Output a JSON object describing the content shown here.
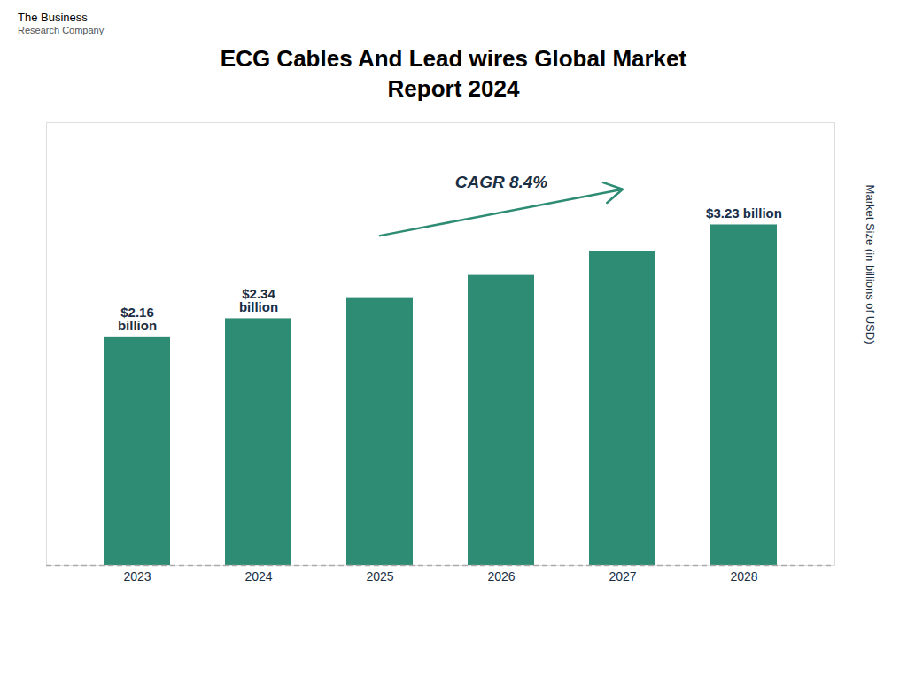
{
  "chart_data": {
    "type": "bar",
    "title": "ECG Cables And Lead wires Global Market\nReport 2024",
    "categories": [
      "2023",
      "2024",
      "2025",
      "2026",
      "2027",
      "2028"
    ],
    "values": [
      2.16,
      2.34,
      2.54,
      2.75,
      2.98,
      3.23
    ],
    "value_labels": [
      "$2.16\nbillion",
      "$2.34\nbillion",
      null,
      null,
      null,
      "$3.23 billion"
    ],
    "color": "#2e8b74",
    "ylabel": "Market Size (in billions of USD)",
    "ylim": [
      0,
      4.2
    ],
    "grid": false,
    "tick_labels": "x",
    "annotations": [
      "CAGR 8.4%",
      "The Business",
      "Research Company"
    ]
  }
}
